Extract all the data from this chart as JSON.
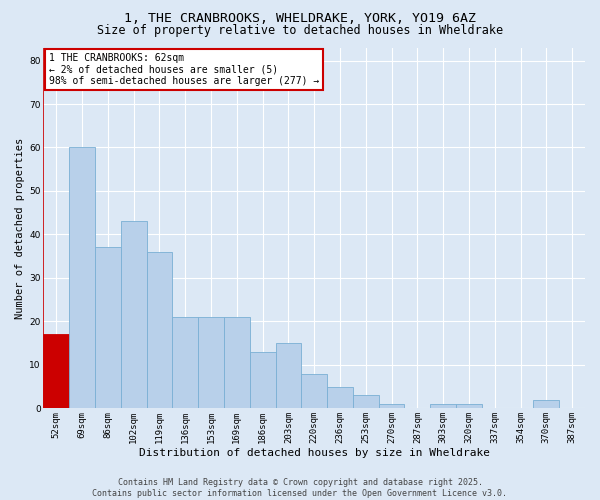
{
  "title": "1, THE CRANBROOKS, WHELDRAKE, YORK, YO19 6AZ",
  "subtitle": "Size of property relative to detached houses in Wheldrake",
  "xlabel": "Distribution of detached houses by size in Wheldrake",
  "ylabel": "Number of detached properties",
  "categories": [
    "52sqm",
    "69sqm",
    "86sqm",
    "102sqm",
    "119sqm",
    "136sqm",
    "153sqm",
    "169sqm",
    "186sqm",
    "203sqm",
    "220sqm",
    "236sqm",
    "253sqm",
    "270sqm",
    "287sqm",
    "303sqm",
    "320sqm",
    "337sqm",
    "354sqm",
    "370sqm",
    "387sqm"
  ],
  "values": [
    17,
    60,
    37,
    43,
    36,
    21,
    21,
    21,
    13,
    15,
    8,
    5,
    3,
    1,
    0,
    1,
    1,
    0,
    0,
    2,
    0
  ],
  "bar_color": "#b8d0ea",
  "bar_edge_color": "#7aafd4",
  "highlight_bar_index": 0,
  "highlight_color": "#cc0000",
  "highlight_edge_color": "#cc0000",
  "annotation_text": "1 THE CRANBROOKS: 62sqm\n← 2% of detached houses are smaller (5)\n98% of semi-detached houses are larger (277) →",
  "annotation_box_facecolor": "#ffffff",
  "annotation_box_edgecolor": "#cc0000",
  "ylim": [
    0,
    83
  ],
  "yticks": [
    0,
    10,
    20,
    30,
    40,
    50,
    60,
    70,
    80
  ],
  "background_color": "#dce8f5",
  "grid_color": "#ffffff",
  "footer_line1": "Contains HM Land Registry data © Crown copyright and database right 2025.",
  "footer_line2": "Contains public sector information licensed under the Open Government Licence v3.0.",
  "title_fontsize": 9.5,
  "subtitle_fontsize": 8.5,
  "xlabel_fontsize": 8,
  "ylabel_fontsize": 7.5,
  "tick_fontsize": 6.5,
  "annotation_fontsize": 7,
  "footer_fontsize": 6
}
